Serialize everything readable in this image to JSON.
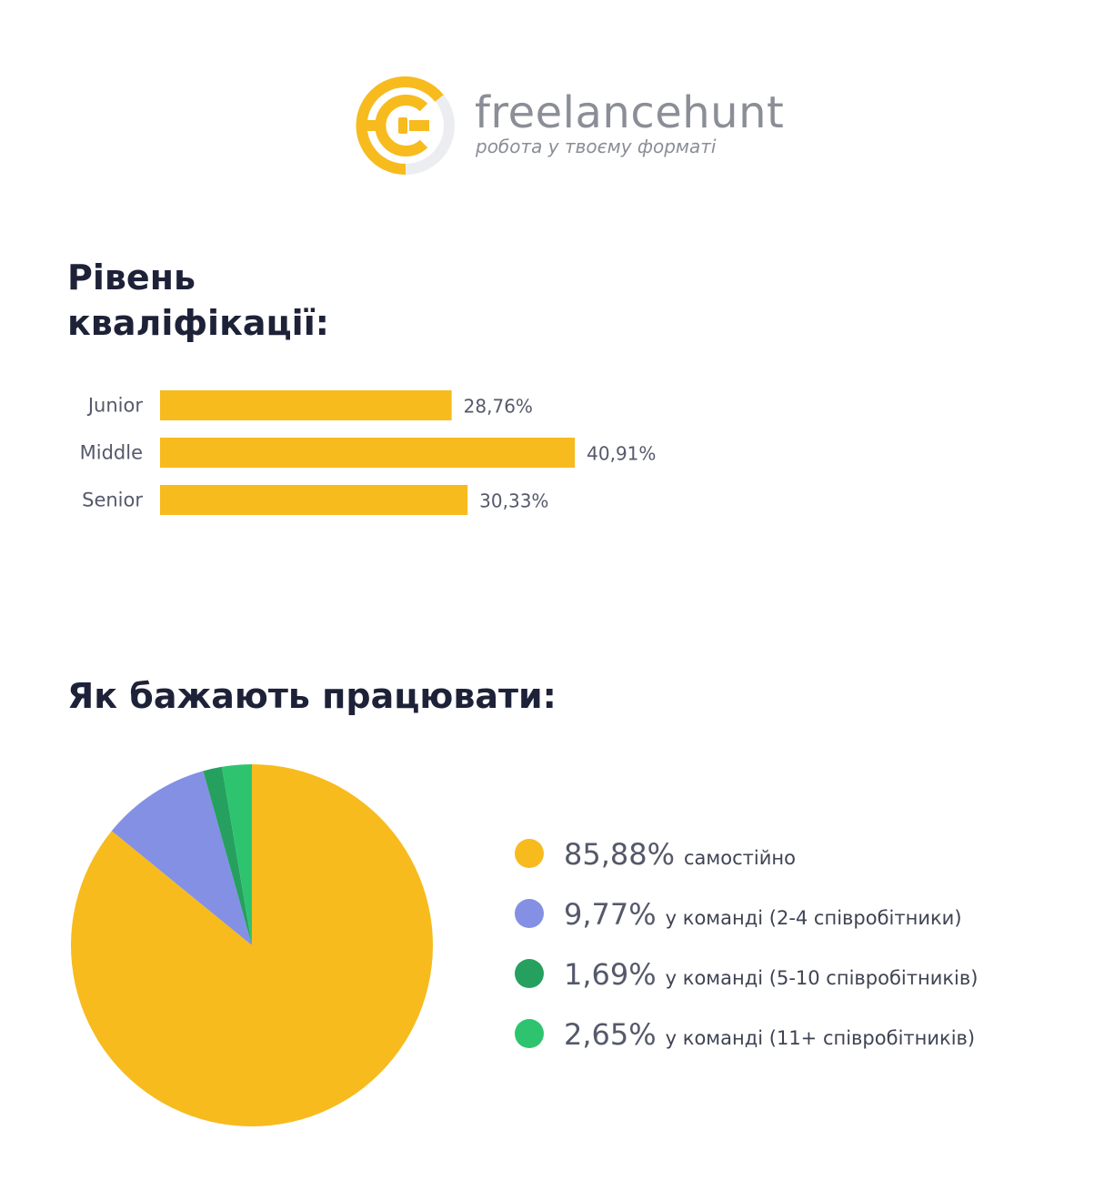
{
  "brand": {
    "name": "freelancehunt",
    "tagline": "робота у твоєму форматі",
    "colors": {
      "primary": "#f7bb1e",
      "ring": "#ecedf0"
    }
  },
  "sections": {
    "qualification": {
      "title_line1": "Рівень",
      "title_line2": "кваліфікації:"
    },
    "work_style": {
      "title": "Як бажають працювати:"
    }
  },
  "chart_data": [
    {
      "type": "bar",
      "orientation": "horizontal",
      "categories": [
        "Junior",
        "Middle",
        "Senior"
      ],
      "values": [
        28.76,
        40.91,
        30.33
      ],
      "value_labels": [
        "28,76%",
        "40,91%",
        "30,33%"
      ],
      "xlim": [
        0,
        100
      ],
      "grid": false,
      "color": "#f7bb1e"
    },
    {
      "type": "pie",
      "categories": [
        "самостійно",
        "у команді (2-4 співробітники)",
        "у команді (5-10 співробітників)",
        "у команді (11+ співробітників)"
      ],
      "values": [
        85.88,
        9.77,
        1.69,
        2.65
      ],
      "value_labels": [
        "85,88%",
        "9,77%",
        "1,69%",
        "2,65%"
      ],
      "colors": [
        "#f7bb1e",
        "#8390e4",
        "#26a05f",
        "#2ec46f"
      ],
      "legend": "right"
    }
  ]
}
